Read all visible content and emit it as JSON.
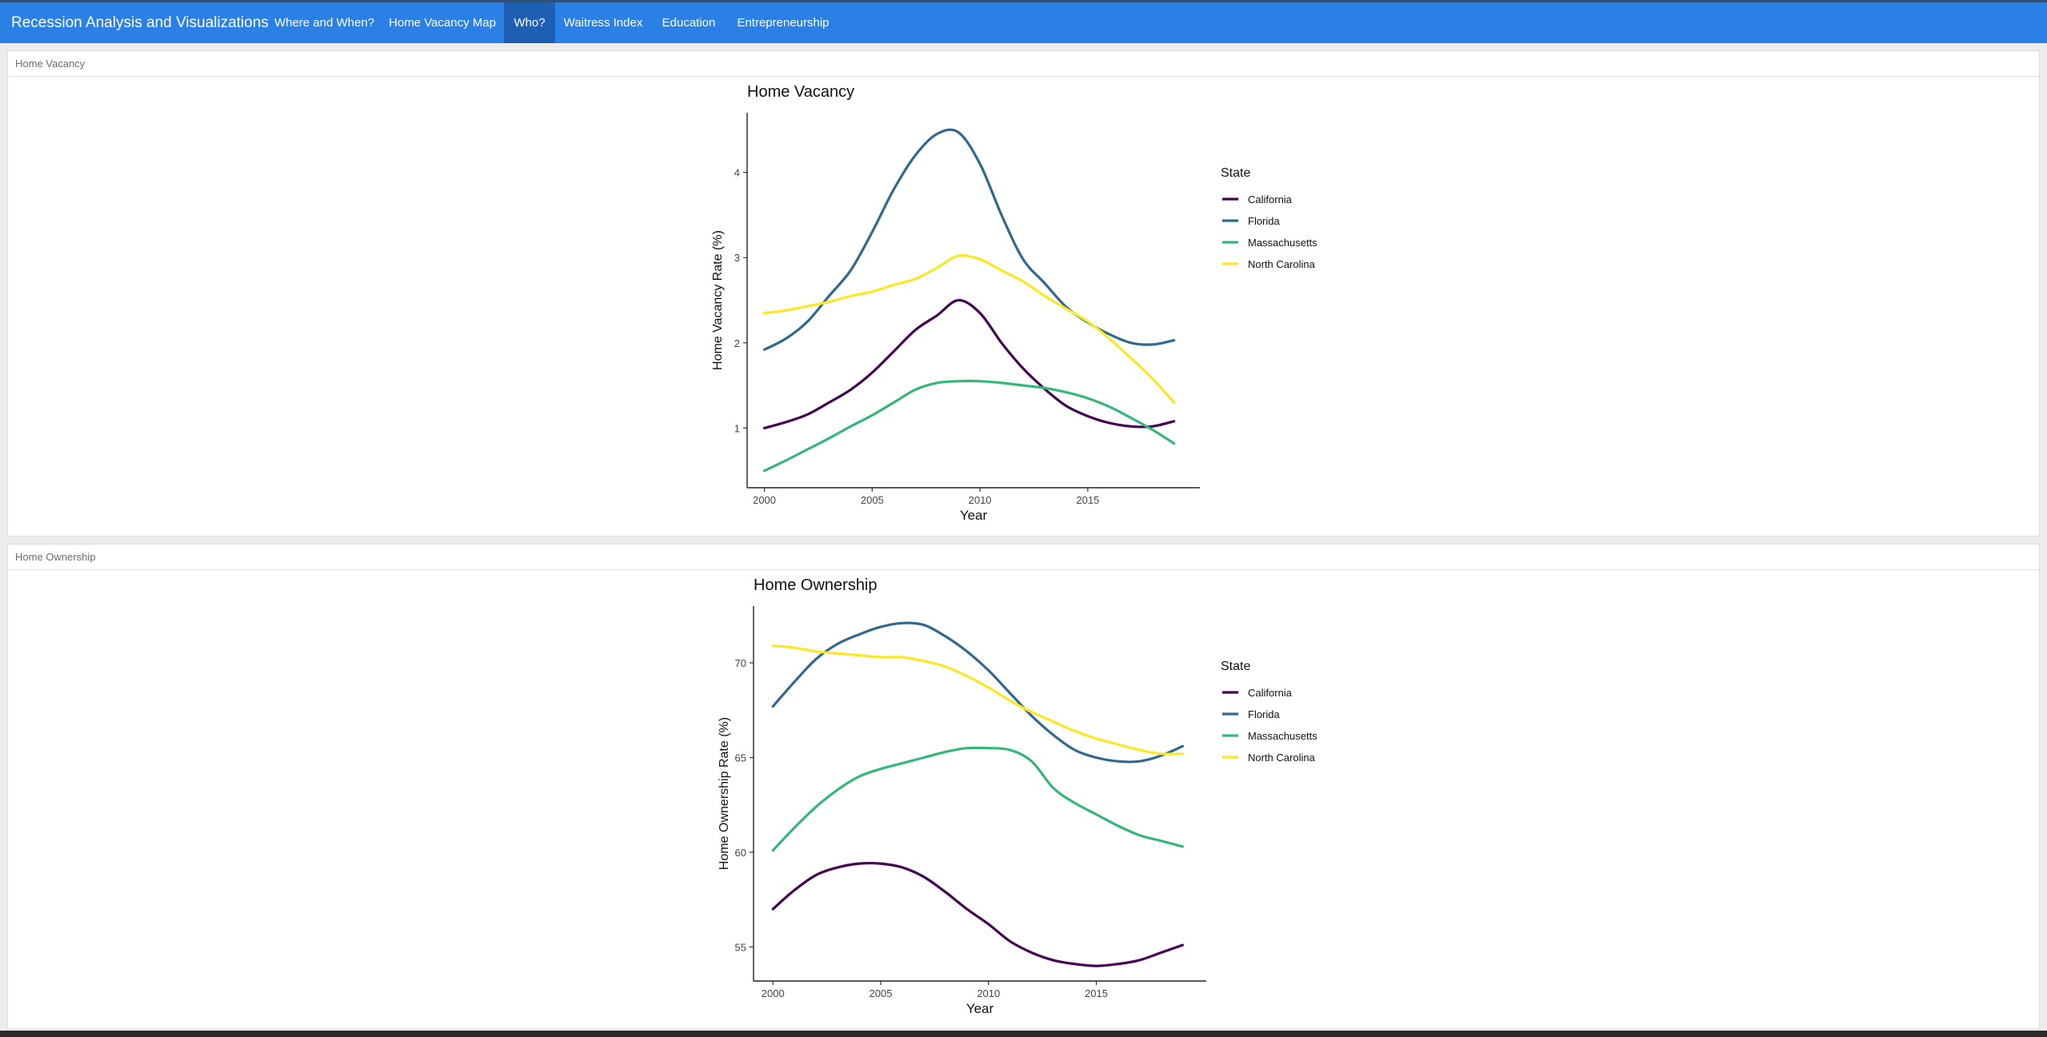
{
  "nav": {
    "brand": "Recession Analysis and Visualizations",
    "items": [
      {
        "label": "Where and When?",
        "active": false
      },
      {
        "label": "Home Vacancy Map",
        "active": false
      },
      {
        "label": "Who?",
        "active": true
      },
      {
        "label": "Waitress Index",
        "active": false
      },
      {
        "label": "Education",
        "active": false
      },
      {
        "label": "Entrepreneurship",
        "active": false
      }
    ],
    "colors": {
      "bar": "#2a80e5",
      "active": "#1d5fb3"
    }
  },
  "panels": [
    {
      "header": "Home Vacancy"
    },
    {
      "header": "Home Ownership"
    }
  ],
  "chart_data": [
    {
      "type": "line",
      "title": "Home Vacancy",
      "xlabel": "Year",
      "ylabel": "Home Vacancy Rate (%)",
      "xlim": [
        1999.2,
        2020.2
      ],
      "ylim": [
        0.3,
        4.7
      ],
      "xticks": [
        2000,
        2005,
        2010,
        2015
      ],
      "yticks": [
        1,
        2,
        3,
        4
      ],
      "grid": false,
      "legend": {
        "title": "State",
        "position": "right"
      },
      "series": [
        {
          "name": "California",
          "color": "#440154",
          "x": [
            2000,
            2001,
            2002,
            2003,
            2004,
            2005,
            2006,
            2007,
            2008,
            2009,
            2010,
            2011,
            2012,
            2013,
            2014,
            2015,
            2016,
            2017,
            2018,
            2019
          ],
          "y": [
            1.0,
            1.07,
            1.16,
            1.3,
            1.45,
            1.65,
            1.9,
            2.15,
            2.32,
            2.5,
            2.35,
            2.0,
            1.7,
            1.46,
            1.26,
            1.14,
            1.06,
            1.02,
            1.02,
            1.08
          ]
        },
        {
          "name": "Florida",
          "color": "#31688e",
          "x": [
            2000,
            2001,
            2002,
            2003,
            2004,
            2005,
            2006,
            2007,
            2008,
            2009,
            2010,
            2011,
            2012,
            2013,
            2014,
            2015,
            2016,
            2017,
            2018,
            2019
          ],
          "y": [
            1.92,
            2.05,
            2.25,
            2.55,
            2.85,
            3.3,
            3.8,
            4.2,
            4.45,
            4.47,
            4.1,
            3.5,
            2.98,
            2.7,
            2.42,
            2.24,
            2.1,
            2.0,
            1.98,
            2.03
          ]
        },
        {
          "name": "Massachusetts",
          "color": "#35b779",
          "x": [
            2000,
            2001,
            2002,
            2003,
            2004,
            2005,
            2006,
            2007,
            2008,
            2009,
            2010,
            2011,
            2012,
            2013,
            2014,
            2015,
            2016,
            2017,
            2018,
            2019
          ],
          "y": [
            0.5,
            0.62,
            0.75,
            0.88,
            1.02,
            1.15,
            1.3,
            1.45,
            1.53,
            1.55,
            1.55,
            1.53,
            1.5,
            1.47,
            1.42,
            1.35,
            1.25,
            1.12,
            0.98,
            0.82
          ]
        },
        {
          "name": "North Carolina",
          "color": "#fde725",
          "x": [
            2000,
            2001,
            2002,
            2003,
            2004,
            2005,
            2006,
            2007,
            2008,
            2009,
            2010,
            2011,
            2012,
            2013,
            2014,
            2015,
            2016,
            2017,
            2018,
            2019
          ],
          "y": [
            2.35,
            2.38,
            2.43,
            2.48,
            2.55,
            2.6,
            2.68,
            2.75,
            2.88,
            3.02,
            2.98,
            2.85,
            2.72,
            2.55,
            2.4,
            2.25,
            2.05,
            1.82,
            1.58,
            1.3
          ]
        }
      ]
    },
    {
      "type": "line",
      "title": "Home Ownership",
      "xlabel": "Year",
      "ylabel": "Home Ownership Rate (%)",
      "xlim": [
        1999.1,
        2020.1
      ],
      "ylim": [
        53.2,
        73.0
      ],
      "xticks": [
        2000,
        2005,
        2010,
        2015
      ],
      "yticks": [
        55,
        60,
        65,
        70
      ],
      "grid": false,
      "legend": {
        "title": "State",
        "position": "right"
      },
      "series": [
        {
          "name": "California",
          "color": "#440154",
          "x": [
            2000,
            2001,
            2002,
            2003,
            2004,
            2005,
            2006,
            2007,
            2008,
            2009,
            2010,
            2011,
            2012,
            2013,
            2014,
            2015,
            2016,
            2017,
            2018,
            2019
          ],
          "y": [
            57.0,
            58.0,
            58.8,
            59.2,
            59.4,
            59.4,
            59.2,
            58.7,
            57.9,
            57.0,
            56.2,
            55.3,
            54.7,
            54.3,
            54.1,
            54.0,
            54.1,
            54.3,
            54.7,
            55.1
          ]
        },
        {
          "name": "Florida",
          "color": "#31688e",
          "x": [
            2000,
            2001,
            2002,
            2003,
            2004,
            2005,
            2006,
            2007,
            2008,
            2009,
            2010,
            2011,
            2012,
            2013,
            2014,
            2015,
            2016,
            2017,
            2018,
            2019
          ],
          "y": [
            67.7,
            69.0,
            70.2,
            71.0,
            71.5,
            71.9,
            72.1,
            72.0,
            71.4,
            70.6,
            69.6,
            68.4,
            67.2,
            66.2,
            65.4,
            65.0,
            64.8,
            64.8,
            65.1,
            65.6
          ]
        },
        {
          "name": "Massachusetts",
          "color": "#35b779",
          "x": [
            2000,
            2001,
            2002,
            2003,
            2004,
            2005,
            2006,
            2007,
            2008,
            2009,
            2010,
            2011,
            2012,
            2013,
            2014,
            2015,
            2016,
            2017,
            2018,
            2019
          ],
          "y": [
            60.1,
            61.3,
            62.4,
            63.3,
            64.0,
            64.4,
            64.7,
            65.0,
            65.3,
            65.5,
            65.5,
            65.4,
            64.8,
            63.4,
            62.6,
            62.0,
            61.4,
            60.9,
            60.6,
            60.3
          ]
        },
        {
          "name": "North Carolina",
          "color": "#fde725",
          "x": [
            2000,
            2001,
            2002,
            2003,
            2004,
            2005,
            2006,
            2007,
            2008,
            2009,
            2010,
            2011,
            2012,
            2013,
            2014,
            2015,
            2016,
            2017,
            2018,
            2019
          ],
          "y": [
            70.9,
            70.8,
            70.6,
            70.5,
            70.4,
            70.3,
            70.3,
            70.1,
            69.8,
            69.3,
            68.7,
            68.0,
            67.4,
            66.9,
            66.4,
            66.0,
            65.7,
            65.4,
            65.2,
            65.2
          ]
        }
      ]
    }
  ]
}
